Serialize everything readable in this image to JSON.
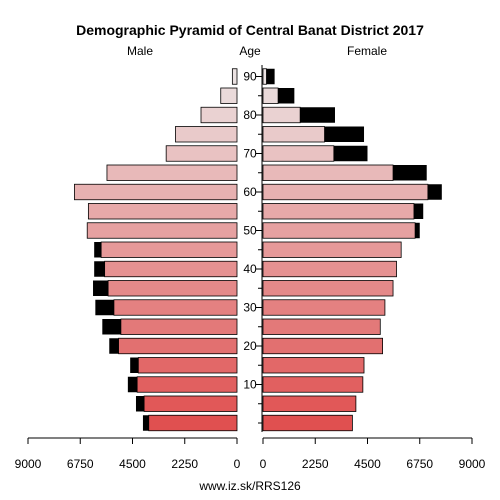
{
  "chart_data": {
    "type": "population_pyramid",
    "title": "Demographic Pyramid of Central Banat District 2017",
    "left_label": "Male",
    "center_label": "Age",
    "right_label": "Female",
    "footer": "www.iz.sk/RRS126",
    "age_tick_labels": [
      "10",
      "20",
      "30",
      "40",
      "50",
      "60",
      "70",
      "80",
      "90"
    ],
    "age_ticks": [
      10,
      20,
      30,
      40,
      50,
      60,
      70,
      80,
      90
    ],
    "male_axis_ticks": [
      9000,
      6750,
      4500,
      2250,
      0
    ],
    "male_axis_tick_labels": [
      "9000",
      "6750",
      "4500",
      "2250",
      "0"
    ],
    "female_axis_ticks": [
      0,
      2250,
      4500,
      6750,
      9000
    ],
    "female_axis_tick_labels": [
      "0",
      "2250",
      "4500",
      "6750",
      "9000"
    ],
    "xlim": [
      0,
      9000
    ],
    "age_groups": [
      "0-4",
      "5-9",
      "10-14",
      "15-19",
      "20-24",
      "25-29",
      "30-34",
      "35-39",
      "40-44",
      "45-49",
      "50-54",
      "55-59",
      "60-64",
      "65-69",
      "70-74",
      "75-79",
      "80-84",
      "85-89",
      "90+"
    ],
    "male": [
      3800,
      4000,
      4300,
      4250,
      5100,
      5000,
      5300,
      5550,
      5700,
      5850,
      6450,
      6400,
      7000,
      5600,
      3050,
      2650,
      1550,
      700,
      200
    ],
    "male_excess": [
      250,
      350,
      400,
      350,
      400,
      800,
      800,
      650,
      450,
      300,
      0,
      0,
      0,
      0,
      0,
      0,
      0,
      0,
      0
    ],
    "female": [
      3850,
      4000,
      4300,
      4350,
      5150,
      5050,
      5250,
      5600,
      5750,
      5950,
      6550,
      6500,
      7100,
      5600,
      3050,
      2650,
      1600,
      650,
      150
    ],
    "female_excess": [
      0,
      0,
      0,
      0,
      0,
      0,
      0,
      0,
      0,
      0,
      200,
      400,
      600,
      1450,
      1450,
      1700,
      1500,
      700,
      350
    ],
    "colors": {
      "bar_young": "#e05050",
      "bar_old": "#ebe2e2",
      "excess": "#000000",
      "outline": "#000000"
    }
  }
}
